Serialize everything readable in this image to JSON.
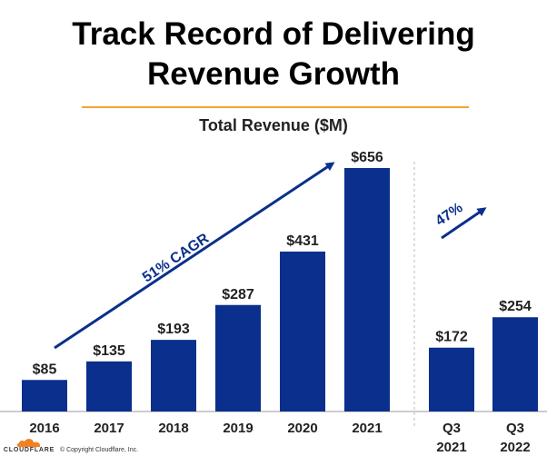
{
  "title": {
    "line1": "Track Record of Delivering",
    "line2": "Revenue Growth"
  },
  "footer": {
    "logo_text": "CLOUDFLARE",
    "copyright": "© Copyright Cloudflare, Inc."
  },
  "colors": {
    "bar": "#0a2f8c",
    "arrow": "#0a2f8c",
    "divider": "#f4a531",
    "logo": "#f38020",
    "separator": "#bbbbbb"
  },
  "chart_data": [
    {
      "type": "bar",
      "title": "Total Revenue ($M)",
      "categories": [
        "2016",
        "2017",
        "2018",
        "2019",
        "2020",
        "2021"
      ],
      "values": [
        85,
        135,
        193,
        287,
        431,
        656
      ],
      "data_labels": [
        "$85",
        "$135",
        "$193",
        "$287",
        "$431",
        "$656"
      ],
      "annotation": "51% CAGR",
      "xlabel": "",
      "ylabel": "",
      "ylim": [
        0,
        656
      ],
      "grid": false,
      "legend": "none"
    },
    {
      "type": "bar",
      "categories": [
        "Q3\n2021",
        "Q3\n2022"
      ],
      "values": [
        172,
        254
      ],
      "data_labels": [
        "$172",
        "$254"
      ],
      "annotation": "47%",
      "xlabel": "",
      "ylabel": "",
      "grid": false,
      "legend": "none"
    }
  ]
}
